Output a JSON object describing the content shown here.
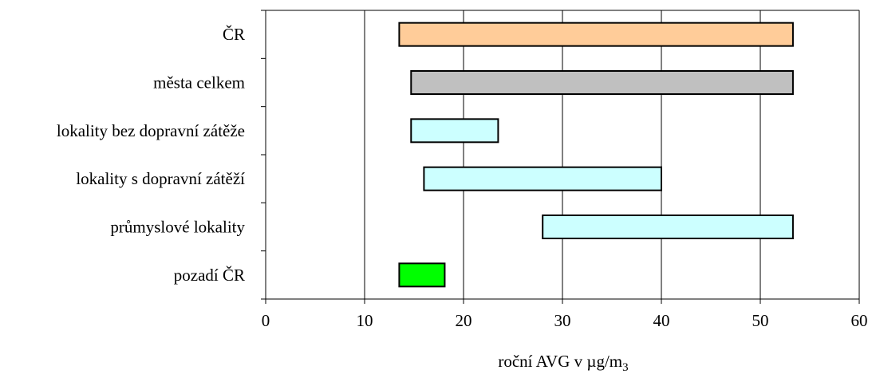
{
  "chart_data": {
    "type": "bar",
    "orientation": "horizontal",
    "subtype": "range",
    "xlabel": "roční AVG v µg/m",
    "xlabel_subscript": "3",
    "xlim": [
      0,
      60
    ],
    "xticks": [
      0,
      10,
      20,
      30,
      40,
      50,
      60
    ],
    "grid": "vertical",
    "bars": [
      {
        "label": "ČR",
        "start": 13.5,
        "end": 53.3,
        "color": "#FFCC99"
      },
      {
        "label": "města celkem",
        "start": 14.7,
        "end": 53.3,
        "color": "#C0C0C0"
      },
      {
        "label": "lokality bez dopravní zátěže",
        "start": 14.7,
        "end": 23.5,
        "color": "#CCFFFF"
      },
      {
        "label": "lokality s dopravní zátěží",
        "start": 16.0,
        "end": 40.0,
        "color": "#CCFFFF"
      },
      {
        "label": "průmyslové lokality",
        "start": 28.0,
        "end": 53.3,
        "color": "#CCFFFF"
      },
      {
        "label": "pozadí ČR",
        "start": 13.5,
        "end": 18.1,
        "color": "#00FF00"
      }
    ]
  }
}
